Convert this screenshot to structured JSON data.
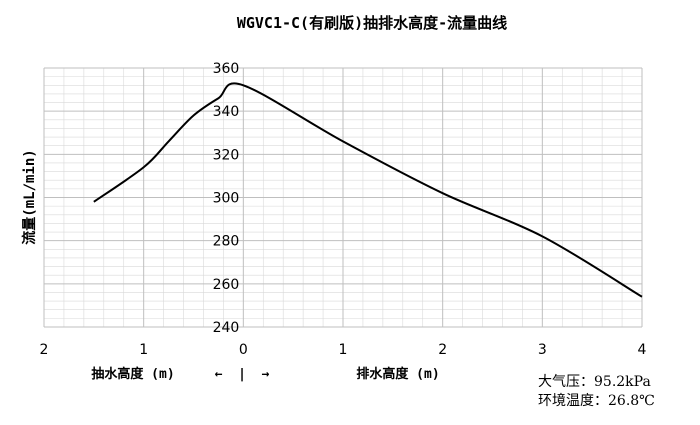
{
  "chart_data": {
    "type": "line",
    "title": "WGVC1-C(有刷版)抽排水高度-流量曲线",
    "ylabel": "流量(mL/min)",
    "xlabel_left": "抽水高度 (m)",
    "xlabel_right": "排水高度 (m)",
    "direction_arrows": "←  |  →",
    "xlim": [
      -2,
      4
    ],
    "ylim": [
      240,
      360
    ],
    "x_ticks": [
      -2,
      -1,
      0,
      1,
      2,
      3,
      4
    ],
    "x_tick_labels": [
      "2",
      "1",
      "0",
      "1",
      "2",
      "3",
      "4"
    ],
    "y_ticks": [
      240,
      260,
      280,
      300,
      320,
      340,
      360
    ],
    "y_tick_labels": [
      "240",
      "260",
      "280",
      "300",
      "320",
      "340",
      "360"
    ],
    "grid": true,
    "series": [
      {
        "x": [
          -1.5,
          -1.0,
          -0.75,
          -0.5,
          -0.25,
          0,
          1,
          2,
          3,
          4
        ],
        "y": [
          298,
          314,
          326,
          338,
          346,
          352,
          326,
          302,
          282,
          254
        ]
      }
    ]
  },
  "info": {
    "pressure": "大气压：95.2kPa",
    "temperature": "环境温度：26.8℃"
  },
  "colors": {
    "line": "#000000",
    "grid": "#d9d9d9",
    "axis": "#bfbfbf"
  }
}
